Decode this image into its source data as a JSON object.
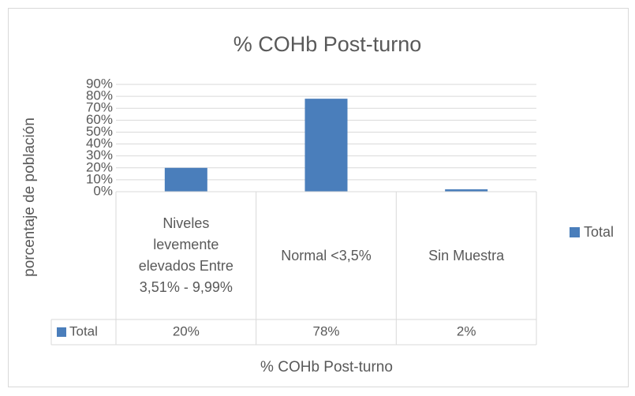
{
  "chart_data": {
    "type": "bar",
    "title": "% COHb Post-turno",
    "x_label": "% COHb Post-turno",
    "y_label": "porcentaje de población",
    "categories": [
      "Niveles levemente elevados Entre 3,51% - 9,99%",
      "Normal <3,5%",
      "Sin Muestra"
    ],
    "series": [
      {
        "name": "Total",
        "color": "#4a7ebb",
        "values": [
          20,
          78,
          2
        ],
        "value_labels": [
          "20%",
          "78%",
          "2%"
        ]
      }
    ],
    "ylim": [
      0,
      90
    ],
    "yticks": [
      {
        "value": 0,
        "label": "0%"
      },
      {
        "value": 10,
        "label": "10%"
      },
      {
        "value": 20,
        "label": "20%"
      },
      {
        "value": 30,
        "label": "30%"
      },
      {
        "value": 40,
        "label": "40%"
      },
      {
        "value": 50,
        "label": "50%"
      },
      {
        "value": 60,
        "label": "60%"
      },
      {
        "value": 70,
        "label": "70%"
      },
      {
        "value": 80,
        "label": "80%"
      },
      {
        "value": 90,
        "label": "90%"
      }
    ],
    "grid": true,
    "legend": "right",
    "data_table": true
  }
}
